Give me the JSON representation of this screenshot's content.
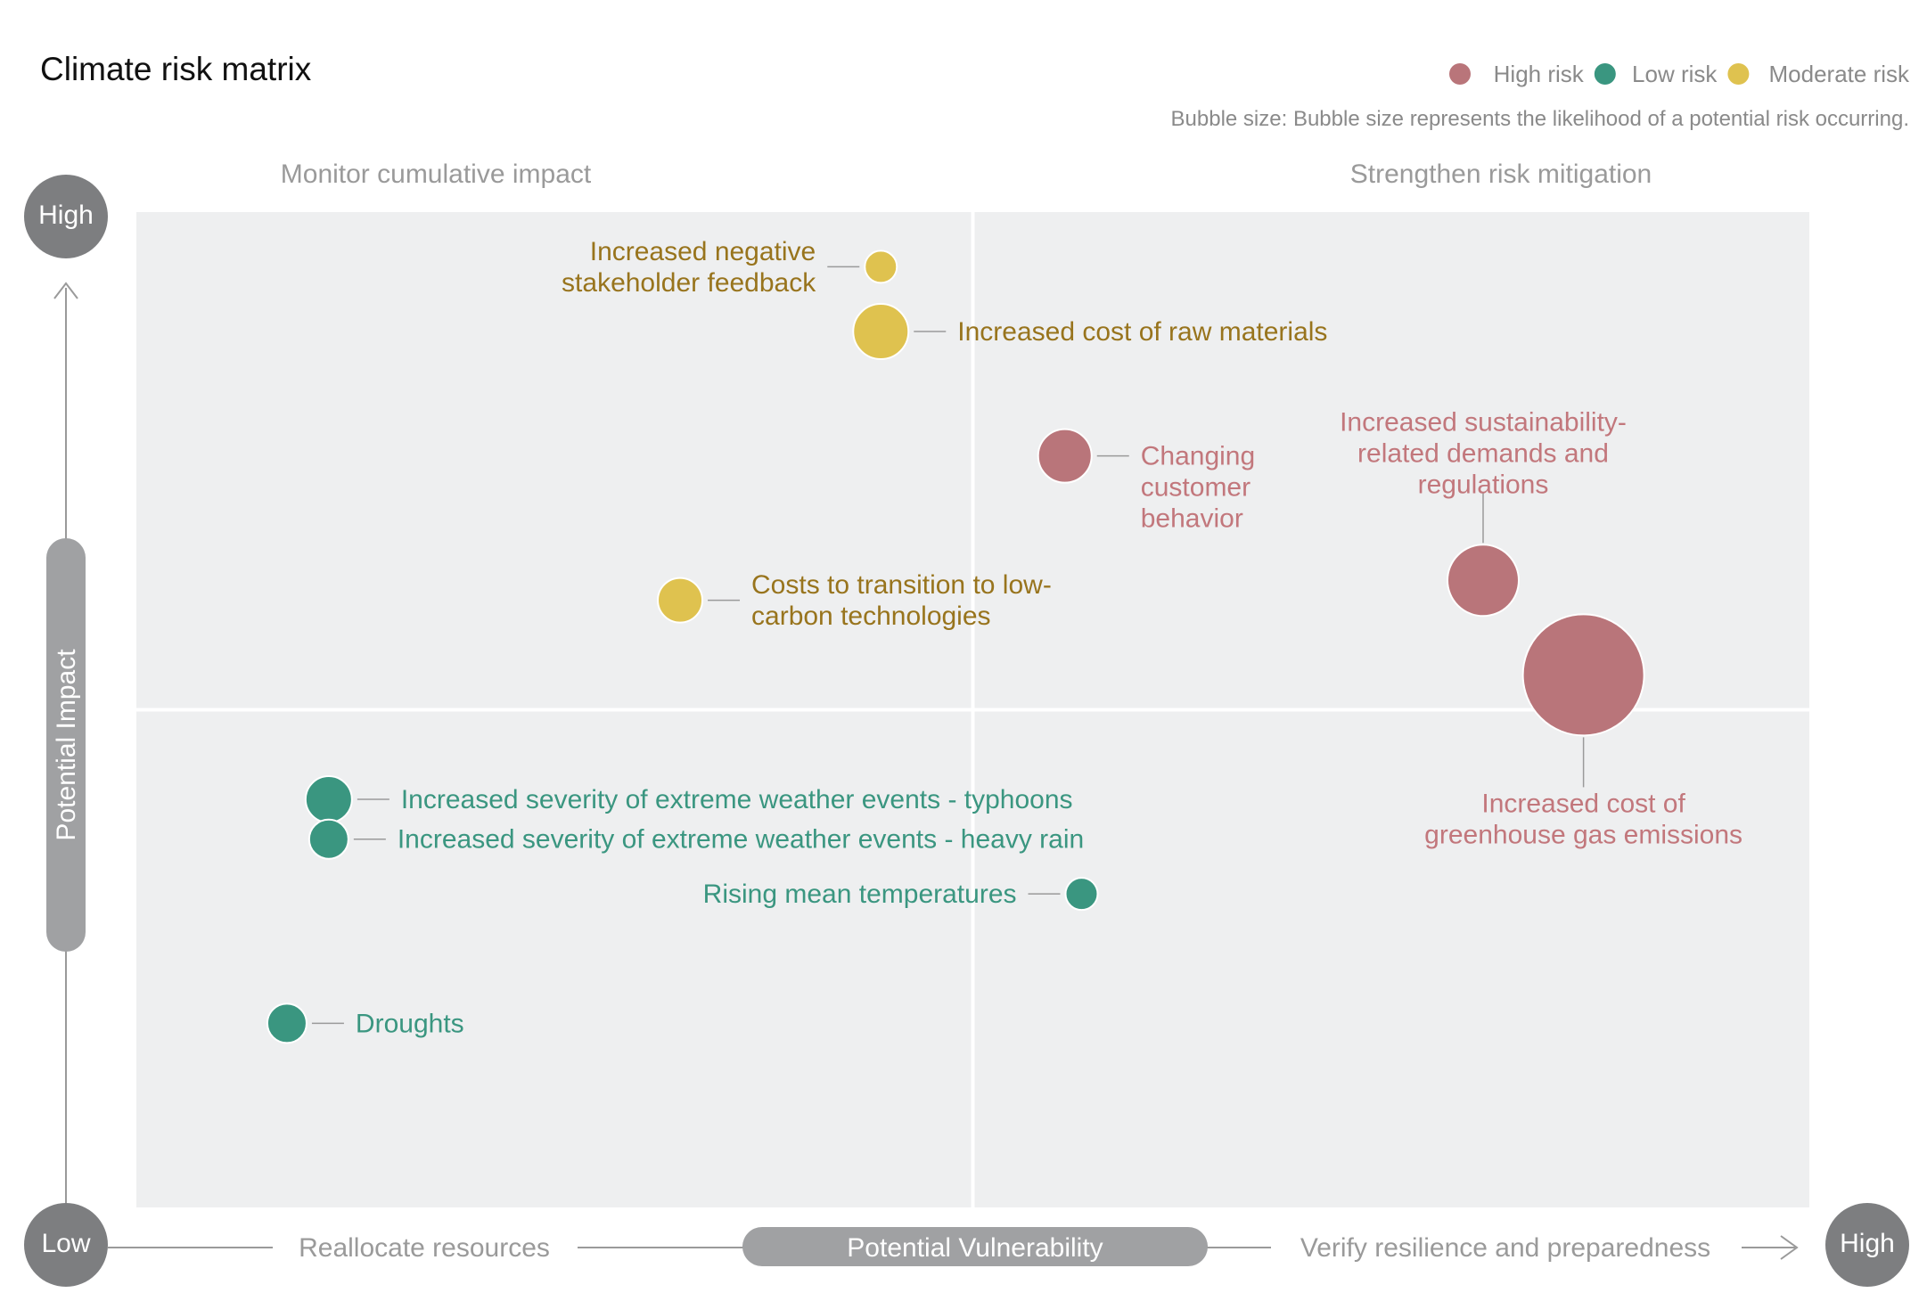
{
  "chart_data": {
    "type": "scatter",
    "title": "Climate risk matrix",
    "xlabel": "Potential Vulnerability",
    "ylabel": "Potential Impact",
    "axis_ends": {
      "x_low": "Low",
      "x_high": "High",
      "y_high": "High"
    },
    "xlim": [
      0,
      100
    ],
    "ylim": [
      0,
      100
    ],
    "midpoint": {
      "x": 50,
      "y": 50
    },
    "x_region_labels": {
      "left": "Reallocate resources",
      "right": "Verify resilience and preparedness"
    },
    "quadrant_labels": {
      "top_left": "Monitor cumulative impact",
      "top_right": "Strengthen risk mitigation"
    },
    "size_note": "Bubble size: Bubble size represents the likelihood of a potential risk occurring.",
    "legend_position": "top-right",
    "grid": false,
    "series": [
      {
        "name": "High risk",
        "color": "#b9757a",
        "label_color": "#c2777c",
        "points": [
          {
            "label": [
              "Changing",
              "customer",
              "behavior"
            ],
            "x": 55.5,
            "y": 75.5,
            "size": 30,
            "label_side": "right"
          },
          {
            "label": [
              "Increased sustainability-",
              "related demands and",
              "regulations"
            ],
            "x": 80.5,
            "y": 63,
            "size": 40,
            "label_side": "above"
          },
          {
            "label": [
              "Increased cost of",
              "greenhouse gas emissions"
            ],
            "x": 86.5,
            "y": 53.5,
            "size": 68,
            "label_side": "below"
          }
        ]
      },
      {
        "name": "Low risk",
        "color": "#3a9680",
        "label_color": "#3a9680",
        "points": [
          {
            "label": [
              "Increased severity of extreme weather events - typhoons"
            ],
            "x": 11.5,
            "y": 41,
            "size": 26,
            "label_side": "right"
          },
          {
            "label": [
              "Increased severity of extreme weather events - heavy rain"
            ],
            "x": 11.5,
            "y": 37,
            "size": 22,
            "label_side": "right"
          },
          {
            "label": [
              "Rising mean temperatures"
            ],
            "x": 56.5,
            "y": 31.5,
            "size": 18,
            "label_side": "left"
          },
          {
            "label": [
              "Droughts"
            ],
            "x": 9,
            "y": 18.5,
            "size": 22,
            "label_side": "right"
          }
        ]
      },
      {
        "name": "Moderate risk",
        "color": "#dfc24f",
        "label_color": "#98741d",
        "points": [
          {
            "label": [
              "Increased negative",
              "stakeholder feedback"
            ],
            "x": 44.5,
            "y": 94.5,
            "size": 18,
            "label_side": "left"
          },
          {
            "label": [
              "Increased cost of raw materials"
            ],
            "x": 44.5,
            "y": 88,
            "size": 31,
            "label_side": "right"
          },
          {
            "label": [
              "Costs to transition to low-",
              "carbon technologies"
            ],
            "x": 32.5,
            "y": 61,
            "size": 25,
            "label_side": "right"
          }
        ]
      }
    ]
  }
}
